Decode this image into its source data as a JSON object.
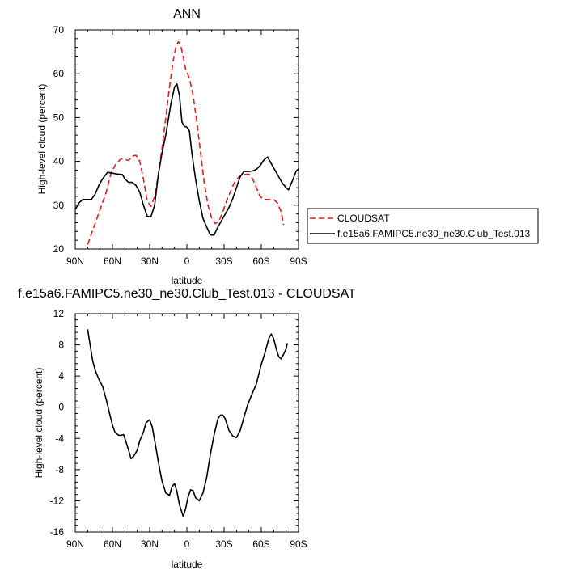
{
  "chart_data": [
    {
      "type": "line",
      "title": "ANN",
      "xlabel": "latitude",
      "ylabel": "High-level cloud (percent)",
      "xlim": [
        90,
        -90
      ],
      "ylim": [
        20,
        70
      ],
      "xtick_labels": [
        "90N",
        "60N",
        "30N",
        "0",
        "30S",
        "60S",
        "90S"
      ],
      "ytick_labels": [
        "20",
        "30",
        "40",
        "50",
        "60",
        "70"
      ],
      "legend_position": "right",
      "series": [
        {
          "name": "CLOUDSAT",
          "color": "#e41a1c",
          "dash": "dashed",
          "points": [
            [
              80,
              21
            ],
            [
              75,
              25
            ],
            [
              70,
              29
            ],
            [
              65,
              33
            ],
            [
              61,
              37.5
            ],
            [
              57,
              39.5
            ],
            [
              53,
              40.6
            ],
            [
              50,
              40.4
            ],
            [
              47,
              40.2
            ],
            [
              44,
              41.2
            ],
            [
              41,
              41.4
            ],
            [
              38,
              40
            ],
            [
              35,
              36
            ],
            [
              32,
              31
            ],
            [
              29,
              29.7
            ],
            [
              26,
              32
            ],
            [
              23,
              37
            ],
            [
              20,
              43
            ],
            [
              17,
              50
            ],
            [
              14,
              57
            ],
            [
              11,
              63
            ],
            [
              9,
              66
            ],
            [
              7,
              67.3
            ],
            [
              5,
              66.5
            ],
            [
              3,
              64
            ],
            [
              1,
              61
            ],
            [
              -2,
              59
            ],
            [
              -5,
              55
            ],
            [
              -8,
              49
            ],
            [
              -11,
              42
            ],
            [
              -14,
              35
            ],
            [
              -17,
              30
            ],
            [
              -20,
              27
            ],
            [
              -23,
              25.8
            ],
            [
              -26,
              26.5
            ],
            [
              -29,
              28.5
            ],
            [
              -32,
              31
            ],
            [
              -35,
              33
            ],
            [
              -38,
              35
            ],
            [
              -42,
              36.5
            ],
            [
              -46,
              37
            ],
            [
              -50,
              37.1
            ],
            [
              -53,
              36
            ],
            [
              -56,
              34
            ],
            [
              -59,
              32
            ],
            [
              -62,
              31.3
            ],
            [
              -66,
              31.3
            ],
            [
              -70,
              31.3
            ],
            [
              -73,
              30.5
            ],
            [
              -76,
              28.5
            ],
            [
              -78,
              25.5
            ]
          ]
        },
        {
          "name": "f.e15a6.FAMIPC5.ne30_ne30.Club_Test.013",
          "color": "#000000",
          "dash": "solid",
          "points": [
            [
              90,
              29
            ],
            [
              87,
              30.5
            ],
            [
              84,
              31.3
            ],
            [
              80,
              31.3
            ],
            [
              77,
              31.3
            ],
            [
              74,
              32.5
            ],
            [
              71,
              34.5
            ],
            [
              68,
              36
            ],
            [
              64,
              37.5
            ],
            [
              60,
              37.3
            ],
            [
              56,
              37.1
            ],
            [
              52,
              37
            ],
            [
              50,
              36
            ],
            [
              47,
              35.2
            ],
            [
              44,
              35.2
            ],
            [
              41,
              34.5
            ],
            [
              38,
              33
            ],
            [
              35,
              30
            ],
            [
              32,
              27.5
            ],
            [
              29,
              27.3
            ],
            [
              26,
              30
            ],
            [
              23,
              37
            ],
            [
              20,
              42
            ],
            [
              17,
              46
            ],
            [
              13,
              53
            ],
            [
              10,
              57
            ],
            [
              8,
              57.7
            ],
            [
              6,
              55
            ],
            [
              4,
              49
            ],
            [
              2,
              48
            ],
            [
              0,
              47.8
            ],
            [
              -2,
              47
            ],
            [
              -4,
              42
            ],
            [
              -7,
              36
            ],
            [
              -10,
              31
            ],
            [
              -13,
              27
            ],
            [
              -16,
              25
            ],
            [
              -19,
              23.2
            ],
            [
              -22,
              23.2
            ],
            [
              -25,
              25
            ],
            [
              -28,
              26.5
            ],
            [
              -31,
              28
            ],
            [
              -34,
              29.5
            ],
            [
              -37,
              31.5
            ],
            [
              -40,
              34
            ],
            [
              -43,
              36.5
            ],
            [
              -46,
              37.7
            ],
            [
              -50,
              37.7
            ],
            [
              -53,
              37.8
            ],
            [
              -56,
              38.2
            ],
            [
              -59,
              39
            ],
            [
              -62,
              40.3
            ],
            [
              -65,
              41
            ],
            [
              -68,
              39.5
            ],
            [
              -71,
              38
            ],
            [
              -74,
              36.5
            ],
            [
              -77,
              35
            ],
            [
              -80,
              34
            ],
            [
              -82,
              33.5
            ],
            [
              -85,
              35.5
            ],
            [
              -88,
              37.7
            ],
            [
              -90,
              38.3
            ]
          ]
        }
      ]
    },
    {
      "type": "line",
      "title": "f.e15a6.FAMIPC5.ne30_ne30.Club_Test.013 - CLOUDSAT",
      "xlabel": "latitude",
      "ylabel": "High-level cloud (percent)",
      "xlim": [
        90,
        -90
      ],
      "ylim": [
        -16,
        12
      ],
      "xtick_labels": [
        "90N",
        "60N",
        "30N",
        "0",
        "30S",
        "60S",
        "90S"
      ],
      "ytick_labels": [
        "-16",
        "-12",
        "-8",
        "-4",
        "0",
        "4",
        "8",
        "12"
      ],
      "series": [
        {
          "color": "#000000",
          "dash": "solid",
          "points": [
            [
              80,
              10
            ],
            [
              78,
              8
            ],
            [
              76,
              6
            ],
            [
              74,
              4.8
            ],
            [
              71,
              3.6
            ],
            [
              68,
              2.7
            ],
            [
              65,
              1
            ],
            [
              62,
              -1
            ],
            [
              60,
              -2.3
            ],
            [
              58,
              -3.2
            ],
            [
              55,
              -3.6
            ],
            [
              53,
              -3.6
            ],
            [
              51,
              -3.5
            ],
            [
              49,
              -4.5
            ],
            [
              47,
              -5.5
            ],
            [
              45,
              -6.6
            ],
            [
              43,
              -6.3
            ],
            [
              40,
              -5.5
            ],
            [
              38,
              -4.3
            ],
            [
              35,
              -3.2
            ],
            [
              33,
              -2
            ],
            [
              30,
              -1.6
            ],
            [
              28,
              -2.5
            ],
            [
              26,
              -4.2
            ],
            [
              23,
              -7
            ],
            [
              20,
              -9.5
            ],
            [
              17,
              -11
            ],
            [
              14,
              -11.3
            ],
            [
              12,
              -10.2
            ],
            [
              10,
              -9.8
            ],
            [
              8,
              -10.8
            ],
            [
              6,
              -12.5
            ],
            [
              3,
              -14
            ],
            [
              1,
              -13
            ],
            [
              -1,
              -11.5
            ],
            [
              -3,
              -10.6
            ],
            [
              -5,
              -10.7
            ],
            [
              -7,
              -11.6
            ],
            [
              -10,
              -12
            ],
            [
              -13,
              -11
            ],
            [
              -16,
              -9
            ],
            [
              -19,
              -6
            ],
            [
              -22,
              -3.5
            ],
            [
              -25,
              -1.5
            ],
            [
              -27,
              -1
            ],
            [
              -29,
              -1
            ],
            [
              -31,
              -1.5
            ],
            [
              -34,
              -3
            ],
            [
              -37,
              -3.7
            ],
            [
              -40,
              -3.9
            ],
            [
              -43,
              -3
            ],
            [
              -46,
              -1.3
            ],
            [
              -49,
              0.3
            ],
            [
              -52,
              1.5
            ],
            [
              -56,
              3
            ],
            [
              -60,
              5.5
            ],
            [
              -63,
              7
            ],
            [
              -66,
              8.8
            ],
            [
              -68,
              9.4
            ],
            [
              -70,
              8.8
            ],
            [
              -72,
              7.5
            ],
            [
              -74,
              6.5
            ],
            [
              -76,
              6.2
            ],
            [
              -78,
              6.8
            ],
            [
              -80,
              7.5
            ],
            [
              -81,
              8.2
            ]
          ]
        }
      ]
    }
  ]
}
